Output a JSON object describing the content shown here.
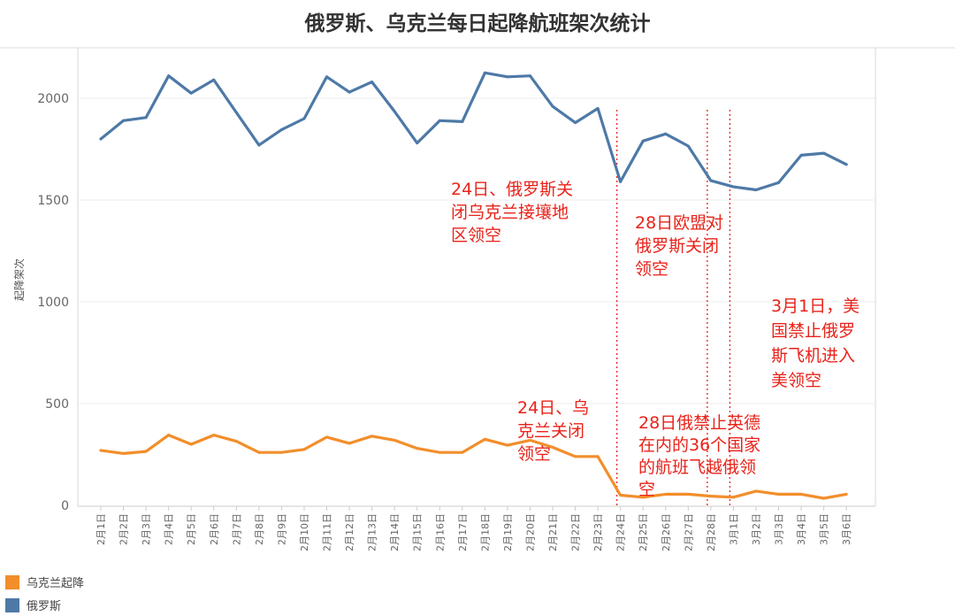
{
  "chart_data": {
    "type": "line",
    "title": "俄罗斯、乌克兰每日起降航班架次统计",
    "ylabel": "起降架次",
    "xlabel": "",
    "ylim": [
      0,
      2220
    ],
    "yticks": [
      0,
      500,
      1000,
      1500,
      2000
    ],
    "categories": [
      "2月1日",
      "2月2日",
      "2月3日",
      "2月4日",
      "2月5日",
      "2月6日",
      "2月7日",
      "2月8日",
      "2月9日",
      "2月10日",
      "2月11日",
      "2月12日",
      "2月13日",
      "2月14日",
      "2月15日",
      "2月16日",
      "2月17日",
      "2月18日",
      "2月19日",
      "2月20日",
      "2月21日",
      "2月22日",
      "2月23日",
      "2月24日",
      "2月25日",
      "2月26日",
      "2月27日",
      "2月28日",
      "3月1日",
      "3月2日",
      "3月3日",
      "3月4日",
      "3月5日",
      "3月6日"
    ],
    "series": [
      {
        "name": "乌克兰起降",
        "color": "#f28e2b",
        "values": [
          270,
          255,
          265,
          345,
          300,
          345,
          315,
          260,
          260,
          275,
          335,
          305,
          340,
          320,
          280,
          260,
          260,
          325,
          295,
          320,
          285,
          240,
          240,
          50,
          40,
          55,
          55,
          45,
          40,
          70,
          55,
          55,
          35,
          55
        ]
      },
      {
        "name": "俄罗斯",
        "color": "#4e79a7",
        "values": [
          1800,
          1890,
          1905,
          2110,
          2025,
          2090,
          1930,
          1770,
          1845,
          1900,
          2105,
          2030,
          2080,
          1935,
          1780,
          1890,
          1885,
          2125,
          2105,
          2110,
          1960,
          1880,
          1950,
          1590,
          1790,
          1825,
          1765,
          1595,
          1565,
          1550,
          1585,
          1720,
          1730,
          1675
        ]
      }
    ],
    "vlines": [
      "2月24日",
      "2月28日",
      "3月1日"
    ],
    "annotations": [
      {
        "id": "a1",
        "lines": [
          "24日、俄罗斯关",
          "闭乌克兰接壤地",
          "区领空"
        ]
      },
      {
        "id": "a2",
        "lines": [
          "28日欧盟对",
          "俄罗斯关闭",
          "领空"
        ]
      },
      {
        "id": "a3",
        "lines": [
          "3月1日，美",
          "国禁止俄罗",
          "斯飞机进入",
          "美领空"
        ]
      },
      {
        "id": "a4",
        "lines": [
          "24日、乌",
          "克兰关闭",
          "领空"
        ]
      },
      {
        "id": "a5",
        "lines": [
          "28日俄禁止英德",
          "在内的36个国家",
          "的航班飞越俄领",
          "空"
        ]
      }
    ],
    "legend": [
      "乌克兰起降",
      "俄罗斯"
    ]
  }
}
